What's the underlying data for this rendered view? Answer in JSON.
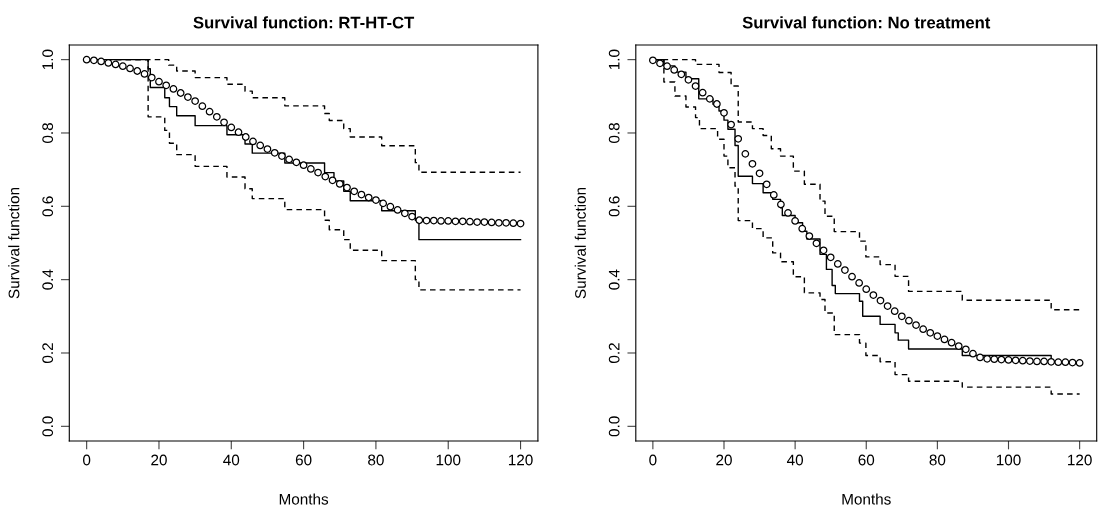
{
  "chart_data": [
    {
      "type": "step",
      "title": "Survival function: RT-HT-CT",
      "xlabel": "Months",
      "ylabel": "Survival function",
      "xlim": [
        -4.8,
        124.8
      ],
      "ylim": [
        -0.04,
        1.04
      ],
      "xticks": [
        0,
        20,
        40,
        60,
        80,
        100,
        120
      ],
      "yticks": [
        {
          "value": 0,
          "label": "0.0"
        },
        {
          "value": 0.2,
          "label": "0.2"
        },
        {
          "value": 0.4,
          "label": "0.4"
        },
        {
          "value": 0.6,
          "label": "0.6"
        },
        {
          "value": 0.8,
          "label": "0.8"
        },
        {
          "value": 1,
          "label": "1.0"
        }
      ],
      "grid": false,
      "series": [
        {
          "color": "#000000",
          "line_style": "solid",
          "x": [
            0,
            17,
            17.6,
            21.6,
            22.9,
            24.9,
            30,
            38.8,
            43.8,
            45.8,
            54.8,
            65.8,
            68.4,
            71.1,
            72.9,
            81.6,
            90.9,
            91.9,
            120
          ],
          "values": [
            1.0,
            0.975,
            0.924,
            0.896,
            0.872,
            0.847,
            0.82,
            0.795,
            0.77,
            0.745,
            0.718,
            0.692,
            0.669,
            0.641,
            0.615,
            0.588,
            0.562,
            0.509,
            0.509
          ]
        },
        {
          "color": "#000000",
          "line_style": "dashed",
          "x": [
            0,
            22.7,
            24.9,
            30,
            38.8,
            43.8,
            45.8,
            54.8,
            65.8,
            67.1,
            71.1,
            72.9,
            81.6,
            90.9,
            91.9,
            120
          ],
          "values": [
            1.0,
            0.985,
            0.969,
            0.951,
            0.933,
            0.914,
            0.896,
            0.874,
            0.853,
            0.834,
            0.812,
            0.789,
            0.765,
            0.719,
            0.693,
            0.693
          ]
        },
        {
          "color": "#000000",
          "line_style": "dashed",
          "x": [
            0,
            17,
            21.6,
            22.9,
            24.9,
            30,
            38.8,
            43.8,
            45.8,
            54.8,
            65.8,
            67.1,
            71.1,
            72.9,
            81.6,
            90.9,
            91.9,
            120
          ],
          "values": [
            1.0,
            0.844,
            0.807,
            0.772,
            0.741,
            0.709,
            0.68,
            0.648,
            0.621,
            0.591,
            0.562,
            0.536,
            0.509,
            0.48,
            0.452,
            0.4,
            0.372,
            0.372
          ]
        },
        {
          "type": "scatter",
          "color": "#000000",
          "marker": "circle",
          "x": [
            0,
            2,
            4,
            6,
            8,
            10,
            12,
            14,
            16,
            18,
            20,
            22,
            24,
            26,
            28,
            30,
            32,
            34,
            36,
            38,
            40,
            42,
            44,
            46,
            48,
            50,
            52,
            54,
            56,
            58,
            60,
            62,
            64,
            66,
            68,
            70,
            72,
            74,
            76,
            78,
            80,
            82,
            84,
            86,
            88,
            90,
            92,
            94,
            96,
            98,
            100,
            102,
            104,
            106,
            108,
            110,
            112,
            114,
            116,
            118,
            120
          ],
          "values": [
            1.0,
            0.998,
            0.995,
            0.991,
            0.987,
            0.982,
            0.976,
            0.969,
            0.961,
            0.951,
            0.94,
            0.93,
            0.92,
            0.909,
            0.898,
            0.887,
            0.873,
            0.858,
            0.844,
            0.829,
            0.815,
            0.802,
            0.789,
            0.777,
            0.766,
            0.756,
            0.746,
            0.737,
            0.728,
            0.72,
            0.712,
            0.702,
            0.692,
            0.681,
            0.671,
            0.661,
            0.651,
            0.641,
            0.632,
            0.624,
            0.617,
            0.608,
            0.599,
            0.59,
            0.581,
            0.572,
            0.562,
            0.561,
            0.561,
            0.56,
            0.56,
            0.559,
            0.559,
            0.558,
            0.557,
            0.557,
            0.556,
            0.555,
            0.555,
            0.554,
            0.553
          ]
        }
      ]
    },
    {
      "type": "step",
      "title": "Survival function: No treatment",
      "xlabel": "Months",
      "ylabel": "Survival function",
      "xlim": [
        -4.8,
        124.8
      ],
      "ylim": [
        -0.04,
        1.04
      ],
      "xticks": [
        0,
        20,
        40,
        60,
        80,
        100,
        120
      ],
      "yticks": [
        {
          "value": 0,
          "label": "0.0"
        },
        {
          "value": 0.2,
          "label": "0.2"
        },
        {
          "value": 0.4,
          "label": "0.4"
        },
        {
          "value": 0.6,
          "label": "0.6"
        },
        {
          "value": 0.8,
          "label": "0.8"
        },
        {
          "value": 1,
          "label": "1.0"
        }
      ],
      "grid": false,
      "series": [
        {
          "color": "#000000",
          "line_style": "solid",
          "x": [
            0,
            3.1,
            6.2,
            9.3,
            12.9,
            16.9,
            18.6,
            20,
            21.1,
            23.1,
            24,
            28,
            31,
            33.7,
            35.9,
            36.4,
            40,
            42.1,
            43.3,
            47,
            48.8,
            50.4,
            51.3,
            58.1,
            59,
            63.9,
            68.1,
            69,
            71.9,
            87,
            112
          ],
          "values": [
            1.0,
            0.983,
            0.966,
            0.948,
            0.893,
            0.878,
            0.86,
            0.835,
            0.81,
            0.766,
            0.682,
            0.662,
            0.637,
            0.619,
            0.596,
            0.575,
            0.555,
            0.532,
            0.511,
            0.469,
            0.428,
            0.384,
            0.362,
            0.341,
            0.3,
            0.278,
            0.255,
            0.235,
            0.211,
            0.193,
            0.175
          ]
        },
        {
          "color": "#000000",
          "line_style": "dashed",
          "x": [
            0,
            12,
            18.6,
            22,
            24,
            28,
            31,
            33.3,
            35.9,
            39.5,
            42.6,
            47,
            48.4,
            51,
            58.1,
            59.9,
            63.9,
            68.1,
            71.9,
            87,
            112,
            120
          ],
          "values": [
            1.0,
            0.987,
            0.965,
            0.928,
            0.83,
            0.812,
            0.793,
            0.757,
            0.737,
            0.696,
            0.66,
            0.614,
            0.573,
            0.531,
            0.505,
            0.462,
            0.441,
            0.409,
            0.368,
            0.344,
            0.318,
            0.318
          ]
        },
        {
          "color": "#000000",
          "line_style": "dashed",
          "x": [
            0,
            3.1,
            6.2,
            9.3,
            12,
            13.1,
            18.2,
            20,
            21.1,
            23.1,
            24,
            28,
            31,
            33.7,
            35.9,
            39.5,
            42.6,
            47,
            48.4,
            51,
            58.1,
            59.9,
            63.9,
            68.1,
            71.9,
            87,
            112,
            120
          ],
          "values": [
            1.0,
            0.939,
            0.901,
            0.871,
            0.842,
            0.812,
            0.783,
            0.737,
            0.705,
            0.655,
            0.561,
            0.539,
            0.514,
            0.473,
            0.449,
            0.408,
            0.364,
            0.346,
            0.309,
            0.25,
            0.227,
            0.193,
            0.176,
            0.141,
            0.123,
            0.107,
            0.088,
            0.088
          ]
        },
        {
          "type": "scatter",
          "color": "#000000",
          "marker": "circle",
          "x": [
            0,
            2,
            4,
            6,
            8,
            10,
            12,
            14,
            16,
            18,
            20,
            22,
            24,
            26,
            28,
            30,
            32,
            34,
            36,
            38,
            40,
            42,
            44,
            46,
            48,
            50,
            52,
            54,
            56,
            58,
            60,
            62,
            64,
            66,
            68,
            70,
            72,
            74,
            76,
            78,
            80,
            82,
            84,
            86,
            88,
            90,
            92,
            94,
            96,
            98,
            100,
            102,
            104,
            106,
            108,
            110,
            112,
            114,
            116,
            118,
            120
          ],
          "values": [
            0.998,
            0.99,
            0.982,
            0.972,
            0.96,
            0.945,
            0.928,
            0.91,
            0.893,
            0.879,
            0.855,
            0.823,
            0.784,
            0.743,
            0.716,
            0.69,
            0.66,
            0.631,
            0.605,
            0.582,
            0.56,
            0.539,
            0.519,
            0.499,
            0.48,
            0.461,
            0.443,
            0.426,
            0.408,
            0.391,
            0.374,
            0.358,
            0.343,
            0.328,
            0.314,
            0.3,
            0.288,
            0.276,
            0.265,
            0.255,
            0.246,
            0.237,
            0.228,
            0.219,
            0.21,
            0.198,
            0.188,
            0.184,
            0.183,
            0.182,
            0.181,
            0.18,
            0.179,
            0.178,
            0.177,
            0.177,
            0.176,
            0.175,
            0.175,
            0.174,
            0.173
          ]
        }
      ]
    }
  ]
}
